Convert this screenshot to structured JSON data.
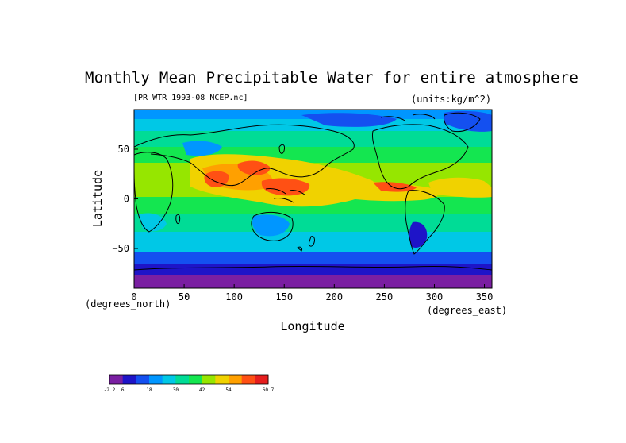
{
  "title": "Monthly Mean Precipitable Water for entire atmosphere",
  "file_label": "[PR_WTR_1993-08_NCEP.nc]",
  "units_label": "(units:kg/m^2)",
  "x_axis": {
    "label": "Longitude",
    "unit_label": "(degrees_east)",
    "ticks": [
      "0",
      "50",
      "100",
      "150",
      "200",
      "250",
      "300",
      "350"
    ],
    "range": [
      0,
      357.5
    ]
  },
  "y_axis": {
    "label": "Latitude",
    "unit_label": "(degrees_north)",
    "ticks": [
      "50",
      "0",
      "−50"
    ],
    "range": [
      -90,
      90
    ]
  },
  "colorbar": {
    "labels": [
      "-2.2",
      "6",
      "18",
      "30",
      "42",
      "54",
      "60.7"
    ],
    "colors": [
      "#7a1fa2",
      "#1e14c8",
      "#1450f0",
      "#0096ff",
      "#00c8e6",
      "#00dc96",
      "#14e650",
      "#96e600",
      "#f0d200",
      "#ffa000",
      "#ff5014",
      "#e61e1e"
    ]
  },
  "chart_data": {
    "type": "heatmap",
    "title": "Monthly Mean Precipitable Water for entire atmosphere",
    "xlabel": "Longitude",
    "ylabel": "Latitude",
    "xlim": [
      0,
      357.5
    ],
    "ylim": [
      -90,
      90
    ],
    "value_range": [
      -2.2,
      60.7
    ],
    "units": "kg/m^2",
    "latitude_band_values": [
      {
        "lat": 85,
        "value": 10
      },
      {
        "lat": 70,
        "value": 18
      },
      {
        "lat": 55,
        "value": 24
      },
      {
        "lat": 40,
        "value": 32
      },
      {
        "lat": 25,
        "value": 42
      },
      {
        "lat": 10,
        "value": 48
      },
      {
        "lat": 0,
        "value": 42
      },
      {
        "lat": -15,
        "value": 32
      },
      {
        "lat": -30,
        "value": 22
      },
      {
        "lat": -45,
        "value": 14
      },
      {
        "lat": -60,
        "value": 8
      },
      {
        "lat": -75,
        "value": 3
      },
      {
        "lat": -88,
        "value": 1
      }
    ]
  }
}
